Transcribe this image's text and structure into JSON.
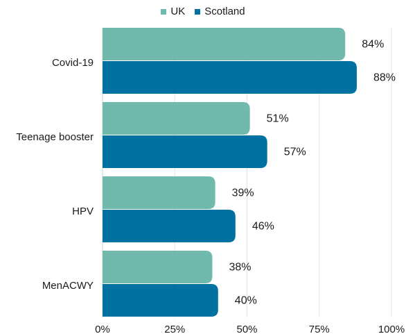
{
  "chart_data": {
    "type": "bar",
    "orientation": "horizontal",
    "categories": [
      "Covid-19",
      "Teenage booster",
      "HPV",
      "MenACWY"
    ],
    "series": [
      {
        "name": "UK",
        "color": "#72b9ad",
        "values": [
          84,
          51,
          39,
          38
        ],
        "labels": [
          "84%",
          "51%",
          "39%",
          "38%"
        ]
      },
      {
        "name": "Scotland",
        "color": "#0071a0",
        "values": [
          88,
          57,
          46,
          40
        ],
        "labels": [
          "88%",
          "57%",
          "46%",
          "40%"
        ]
      }
    ],
    "x_ticks": [
      "0%",
      "25%",
      "50%",
      "75%",
      "100%"
    ],
    "xlim": [
      0,
      100
    ],
    "grid": "vertical",
    "legend_position": "top-center"
  }
}
